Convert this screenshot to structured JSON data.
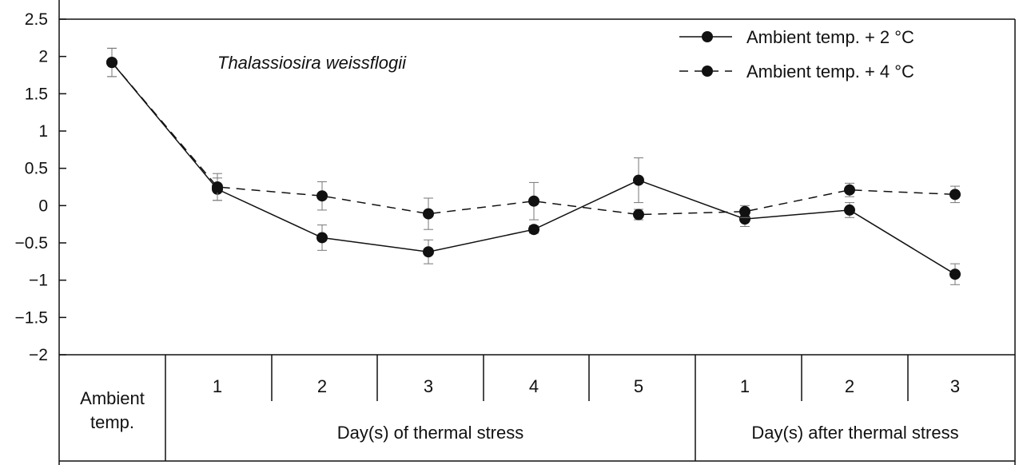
{
  "chart_data": {
    "type": "line",
    "annotation": "Thalassiosira weissflogii",
    "ylim": [
      -2,
      2.5
    ],
    "yticks": [
      "2.5",
      "2",
      "1.5",
      "1",
      "0.5",
      "0",
      "−0.5",
      "−1",
      "−1.5",
      "−2"
    ],
    "categories": [
      "Ambient temp.",
      "1",
      "2",
      "3",
      "4",
      "5",
      "1",
      "2",
      "3"
    ],
    "groups": [
      {
        "label": "Ambient temp.",
        "span": [
          0,
          0
        ]
      },
      {
        "label": "Day(s) of thermal stress",
        "span": [
          1,
          5
        ]
      },
      {
        "label": "Day(s) after thermal stress",
        "span": [
          6,
          8
        ]
      }
    ],
    "series": [
      {
        "name": "Ambient temp. + 2 °C",
        "style": "solid",
        "values": [
          1.92,
          0.22,
          -0.43,
          -0.62,
          -0.32,
          0.34,
          -0.18,
          -0.06,
          -0.92
        ],
        "errors": [
          0.19,
          0.15,
          0.17,
          0.16,
          0.05,
          0.3,
          0.1,
          0.1,
          0.14
        ]
      },
      {
        "name": "Ambient temp. + 4 °C",
        "style": "dashed",
        "values": [
          1.92,
          0.25,
          0.13,
          -0.11,
          0.06,
          -0.12,
          -0.08,
          0.21,
          0.15
        ],
        "errors": [
          0.19,
          0.18,
          0.19,
          0.21,
          0.25,
          0.07,
          0.08,
          0.09,
          0.11
        ]
      }
    ],
    "legend_position": "top-right",
    "grid": false
  }
}
